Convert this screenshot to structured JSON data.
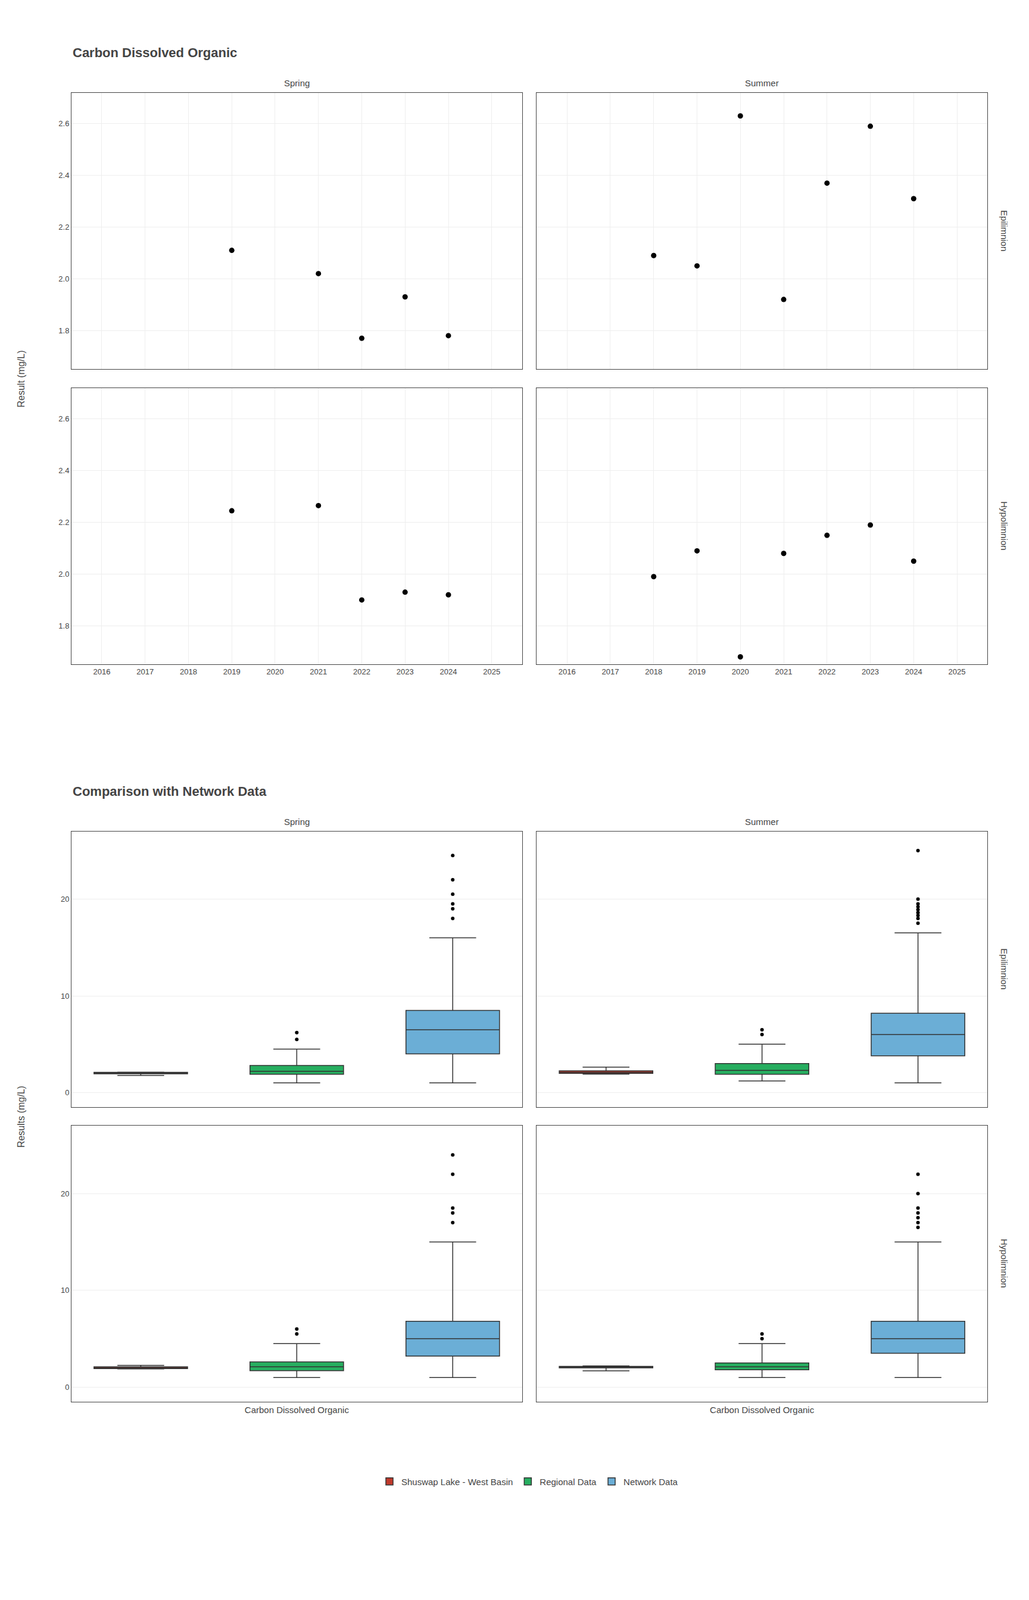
{
  "chart_data": [
    {
      "type": "scatter",
      "title": "Carbon Dissolved Organic",
      "ylabel": "Result (mg/L)",
      "columns": [
        "Spring",
        "Summer"
      ],
      "rows": [
        "Epilimnion",
        "Hypolimnion"
      ],
      "color": "#000000",
      "grid": true,
      "xlim": [
        2015.3,
        2025.7
      ],
      "xticks": [
        2016,
        2017,
        2018,
        2019,
        2020,
        2021,
        2022,
        2023,
        2024,
        2025
      ],
      "ylim": [
        1.65,
        2.72
      ],
      "yticks": [
        1.8,
        {
          "value": 2.0,
          "label": "2.0"
        },
        2.2,
        2.4,
        2.6
      ],
      "facets": [
        {
          "x": [
            2019,
            2021,
            2022,
            2023,
            2024
          ],
          "values": [
            2.11,
            2.02,
            1.77,
            1.93,
            1.78
          ]
        },
        {
          "x": [
            2018,
            2019,
            2020,
            2021,
            2022,
            2023,
            2024
          ],
          "values": [
            2.09,
            2.05,
            2.63,
            1.92,
            2.37,
            2.59,
            2.31
          ]
        },
        {
          "x": [
            2019,
            2021,
            2022,
            2023,
            2024
          ],
          "values": [
            2.245,
            2.265,
            1.9,
            1.93,
            1.92
          ]
        },
        {
          "x": [
            2018,
            2019,
            2020,
            2021,
            2022,
            2023,
            2024
          ],
          "values": [
            1.99,
            2.09,
            1.68,
            2.08,
            2.15,
            2.19,
            2.05
          ]
        }
      ]
    },
    {
      "type": "box",
      "title": "Comparison with Network Data",
      "ylabel": "Results (mg/L)",
      "xlabel": "Carbon Dissolved Organic",
      "columns": [
        "Spring",
        "Summer"
      ],
      "rows": [
        "Epilimnion",
        "Hypolimnion"
      ],
      "grid": "y",
      "tick_labels": "y",
      "legend": "bottom",
      "ylim": [
        -1.5,
        27
      ],
      "yticks": [
        0,
        10,
        20
      ],
      "series": [
        {
          "name": "Shuswap Lake - West Basin",
          "color": "#c0392b"
        },
        {
          "name": "Regional Data",
          "color": "#27ae60"
        },
        {
          "name": "Network Data",
          "color": "#6baed6"
        }
      ],
      "facets": [
        {
          "boxes": [
            {
              "median": 2.02,
              "q1": 1.95,
              "q3": 2.09,
              "whislo": 1.77,
              "whishi": 2.11,
              "fliers": []
            },
            {
              "median": 2.2,
              "q1": 1.9,
              "q3": 2.8,
              "whislo": 1.0,
              "whishi": 4.5,
              "fliers": [
                5.5,
                6.2
              ]
            },
            {
              "median": 6.5,
              "q1": 4.0,
              "q3": 8.5,
              "whislo": 1.0,
              "whishi": 16.0,
              "fliers": [
                18.0,
                19.0,
                19.5,
                20.5,
                22.0,
                24.5
              ]
            }
          ]
        },
        {
          "boxes": [
            {
              "median": 2.09,
              "q1": 1.99,
              "q3": 2.25,
              "whislo": 1.92,
              "whishi": 2.63,
              "fliers": []
            },
            {
              "median": 2.3,
              "q1": 1.9,
              "q3": 3.0,
              "whislo": 1.2,
              "whishi": 5.0,
              "fliers": [
                6.0,
                6.5
              ]
            },
            {
              "median": 6.0,
              "q1": 3.8,
              "q3": 8.2,
              "whislo": 1.0,
              "whishi": 16.5,
              "fliers": [
                17.5,
                18.0,
                18.3,
                18.6,
                18.9,
                19.2,
                19.5,
                20.0,
                25.0
              ]
            }
          ]
        },
        {
          "boxes": [
            {
              "median": 1.99,
              "q1": 1.92,
              "q3": 2.1,
              "whislo": 1.89,
              "whishi": 2.25,
              "fliers": []
            },
            {
              "median": 2.1,
              "q1": 1.7,
              "q3": 2.6,
              "whislo": 1.0,
              "whishi": 4.5,
              "fliers": [
                5.5,
                6.0
              ]
            },
            {
              "median": 5.0,
              "q1": 3.2,
              "q3": 6.8,
              "whislo": 1.0,
              "whishi": 15.0,
              "fliers": [
                17.0,
                18.0,
                18.5,
                22.0,
                24.0
              ]
            }
          ]
        },
        {
          "boxes": [
            {
              "median": 2.05,
              "q1": 1.99,
              "q3": 2.15,
              "whislo": 1.68,
              "whishi": 2.19,
              "fliers": []
            },
            {
              "median": 2.1,
              "q1": 1.8,
              "q3": 2.5,
              "whislo": 1.0,
              "whishi": 4.5,
              "fliers": [
                5.0,
                5.5
              ]
            },
            {
              "median": 5.0,
              "q1": 3.5,
              "q3": 6.8,
              "whislo": 1.0,
              "whishi": 15.0,
              "fliers": [
                16.5,
                17.0,
                17.5,
                18.0,
                18.5,
                20.0,
                22.0
              ]
            }
          ]
        }
      ]
    }
  ]
}
